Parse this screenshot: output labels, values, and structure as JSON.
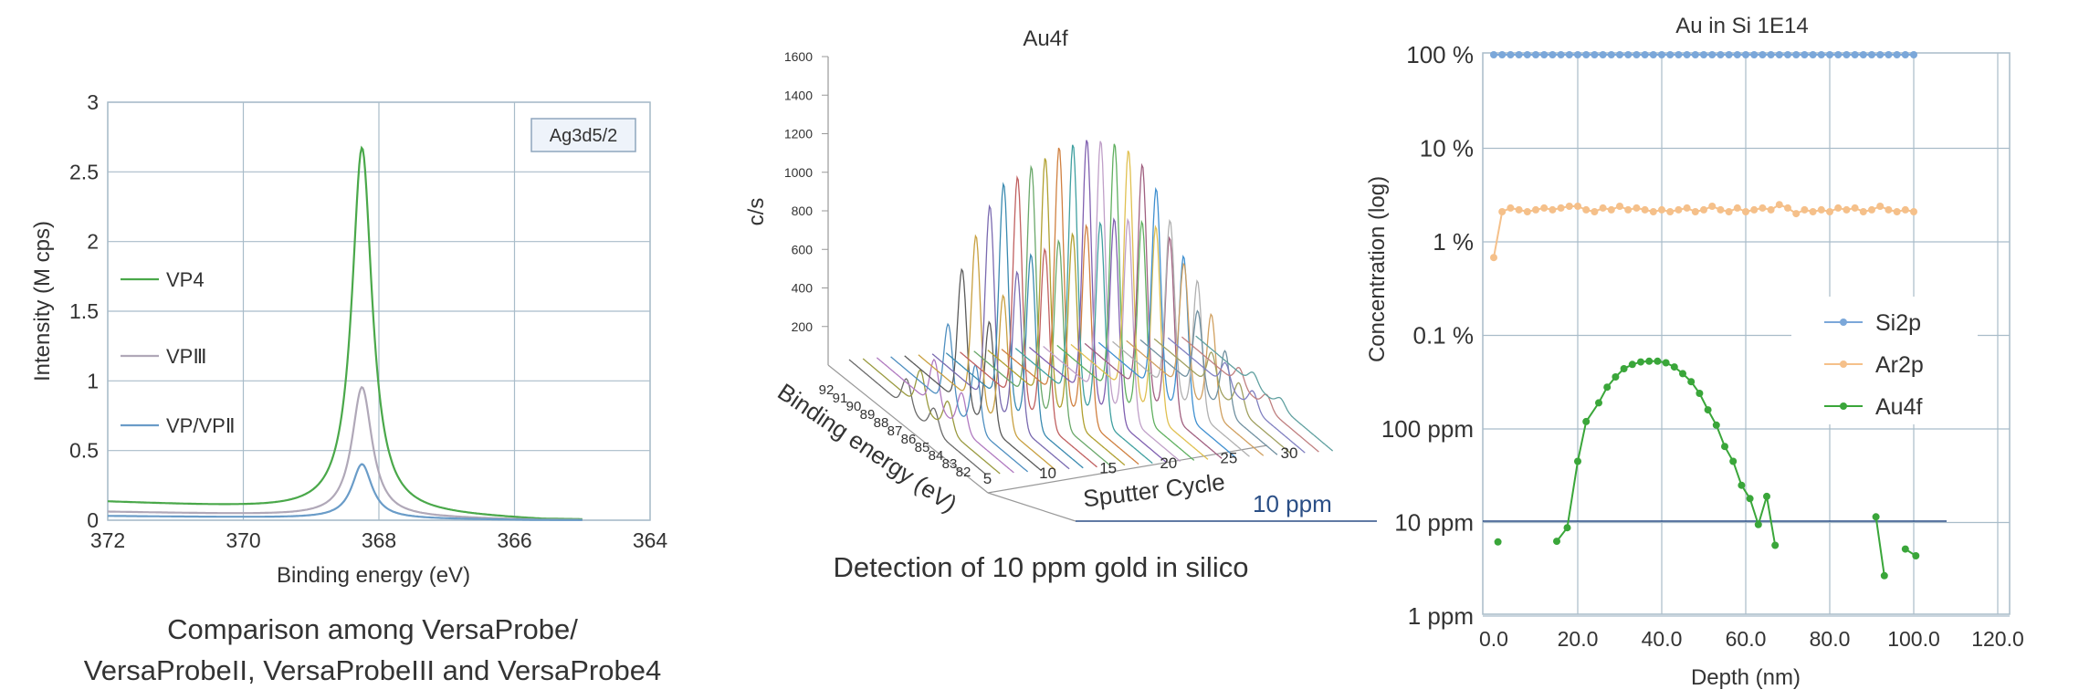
{
  "chart_data": [
    {
      "type": "line",
      "xlabel": "Binding energy (eV)",
      "ylabel": "Intensity (M cps)",
      "xlim": [
        372,
        364
      ],
      "ylim": [
        0,
        3
      ],
      "x_ticks": [
        "372",
        "370",
        "368",
        "366",
        "364"
      ],
      "y_ticks": [
        "0",
        "0.5",
        "1",
        "1.5",
        "2",
        "2.5",
        "3"
      ],
      "annotation": "Ag3d5/2",
      "grid": true,
      "legend_placement": "left",
      "series": [
        {
          "name": "VP4",
          "color": "#4aa84a",
          "peak_x": 368.25,
          "peak_y": 2.62,
          "baseline": 0.13,
          "tail": 0.0
        },
        {
          "name": "VPⅢ",
          "color": "#b0a8b8",
          "peak_x": 368.25,
          "peak_y": 0.93,
          "baseline": 0.06,
          "tail": 0.0
        },
        {
          "name": "VP/VPⅡ",
          "color": "#6a9cc8",
          "peak_x": 368.25,
          "peak_y": 0.39,
          "baseline": 0.03,
          "tail": 0.0
        }
      ],
      "caption": [
        "Comparison among VersaProbe/",
        "VersaProbeII, VersaProbeIII and VersaProbe4"
      ]
    },
    {
      "type": "line",
      "title": "Au4f",
      "zlabel": "c/s",
      "xlabel": "Sputter Cycle",
      "ylabel": "Binding energy (eV)",
      "z_ticks": [
        "200",
        "400",
        "600",
        "800",
        "1000",
        "1200",
        "1400",
        "1600"
      ],
      "zlim": [
        0,
        1600
      ],
      "x_ticks": [
        "5",
        "10",
        "15",
        "20",
        "25",
        "30"
      ],
      "y_ticks": [
        "92",
        "91",
        "90",
        "89",
        "88",
        "87",
        "86",
        "85",
        "84",
        "83",
        "82"
      ],
      "cycles": [
        3,
        4,
        5,
        6,
        7,
        8,
        9,
        10,
        11,
        12,
        13,
        14,
        15,
        16,
        17,
        18,
        19,
        20,
        21,
        22,
        23,
        24,
        25,
        26,
        27,
        28
      ],
      "peak_heights": [
        150,
        190,
        240,
        420,
        700,
        870,
        1020,
        1130,
        1160,
        1210,
        1250,
        1300,
        1310,
        1330,
        1320,
        1300,
        1260,
        1180,
        1050,
        880,
        650,
        400,
        180,
        120,
        90,
        60
      ],
      "reference_label": "10 ppm",
      "caption": "Detection of 10 ppm gold in silico"
    },
    {
      "type": "line",
      "title": "Au in Si 1E14",
      "xlabel": "Depth (nm)",
      "ylabel": "Concentration (log)",
      "log_scale_y": true,
      "x_ticks": [
        "0.0",
        "20.0",
        "40.0",
        "60.0",
        "80.0",
        "100.0",
        "120.0"
      ],
      "xlim": [
        0,
        120
      ],
      "y_ticks": [
        "1 ppm",
        "10 ppm",
        "100 ppm",
        "0.1 %",
        "1 %",
        "10 %",
        "100 %"
      ],
      "ylim": [
        1e-06,
        1
      ],
      "reference_line": 1e-05,
      "grid": true,
      "legend_placement": "right",
      "series": [
        {
          "name": "Si2p",
          "color": "#7ba7d9",
          "x": [
            0,
            2,
            4,
            6,
            8,
            10,
            12,
            14,
            16,
            18,
            20,
            22,
            24,
            26,
            28,
            30,
            32,
            34,
            36,
            38,
            40,
            42,
            44,
            46,
            48,
            50,
            52,
            54,
            56,
            58,
            60,
            62,
            64,
            66,
            68,
            70,
            72,
            74,
            76,
            78,
            80,
            82,
            84,
            86,
            88,
            90,
            92,
            94,
            96,
            98,
            100
          ],
          "y": [
            1,
            1,
            1,
            1,
            1,
            1,
            1,
            1,
            1,
            1,
            1,
            1,
            1,
            1,
            1,
            1,
            1,
            1,
            1,
            1,
            1,
            1,
            1,
            1,
            1,
            1,
            1,
            1,
            1,
            1,
            1,
            1,
            1,
            1,
            1,
            1,
            1,
            1,
            1,
            1,
            1,
            1,
            1,
            1,
            1,
            1,
            1,
            1,
            1,
            1,
            1
          ]
        },
        {
          "name": "Ar2p",
          "color": "#f5c08a",
          "x": [
            0,
            2,
            4,
            6,
            8,
            10,
            12,
            14,
            16,
            18,
            20,
            22,
            24,
            26,
            28,
            30,
            32,
            34,
            36,
            38,
            40,
            42,
            44,
            46,
            48,
            50,
            52,
            54,
            56,
            58,
            60,
            62,
            64,
            66,
            68,
            70,
            72,
            74,
            76,
            78,
            80,
            82,
            84,
            86,
            88,
            90,
            92,
            94,
            96,
            98,
            100
          ],
          "y": [
            0.0068,
            0.021,
            0.023,
            0.022,
            0.021,
            0.022,
            0.023,
            0.022,
            0.023,
            0.024,
            0.024,
            0.022,
            0.021,
            0.023,
            0.022,
            0.024,
            0.022,
            0.023,
            0.022,
            0.021,
            0.022,
            0.021,
            0.022,
            0.023,
            0.021,
            0.022,
            0.024,
            0.022,
            0.021,
            0.023,
            0.021,
            0.022,
            0.023,
            0.022,
            0.025,
            0.023,
            0.02,
            0.022,
            0.021,
            0.022,
            0.021,
            0.023,
            0.022,
            0.023,
            0.021,
            0.022,
            0.024,
            0.022,
            0.021,
            0.022,
            0.021
          ]
        },
        {
          "name": "Au4f",
          "color": "#3aa63a",
          "segments": [
            {
              "x": [
                1
              ],
              "y": [
                6.2e-06
              ]
            },
            {
              "x": [
                15,
                17.5,
                20,
                22,
                25,
                27,
                29,
                31,
                33,
                35,
                37,
                39,
                41,
                43,
                45,
                47,
                49,
                51,
                53,
                55,
                57,
                59,
                61,
                63,
                65,
                67,
                69,
                71,
                73,
                75
              ],
              "y": [
                6.3e-06,
                8.8e-06,
                4.5e-05,
                0.00012,
                0.00019,
                0.00028,
                0.00036,
                0.00044,
                0.00049,
                0.00052,
                0.00053,
                0.00053,
                0.00051,
                0.00046,
                0.00039,
                0.00032,
                0.00024,
                0.00016,
                0.00011,
                6.5e-05,
                4.5e-05,
                2.5e-05,
                1.8e-05,
                9.5e-06,
                1.9e-05,
                5.7e-06,
                null,
                null,
                null,
                null
              ]
            },
            {
              "x": [
                91,
                93
              ],
              "y": [
                1.15e-05,
                2.7e-06
              ]
            },
            {
              "x": [
                98,
                100.5
              ],
              "y": [
                5.2e-06,
                4.4e-06
              ]
            }
          ]
        }
      ]
    }
  ]
}
